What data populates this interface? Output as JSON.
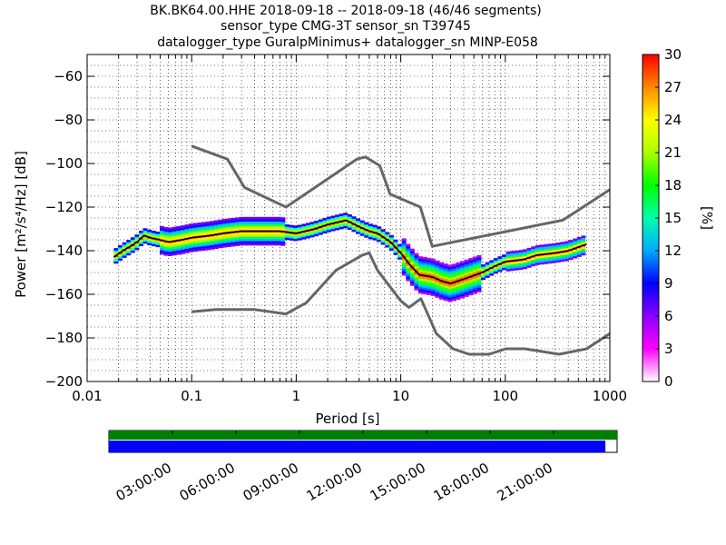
{
  "colors": {
    "nlnm_nhnm_curve": "#666666",
    "mode_line": "#000000",
    "coverage_top_bar": "#008000",
    "coverage_bottom_bar": "#0000ff",
    "grid": "#000000"
  },
  "chart_data": {
    "type": "heatmap",
    "title_lines": [
      "BK.BK64.00.HHE   2018-09-18 -- 2018-09-18  (46/46 segments)",
      "sensor_type CMG-3T sensor_sn T39745",
      "datalogger_type GuralpMinimus+ datalogger_sn MINP-E058"
    ],
    "xlabel": "Period [s]",
    "ylabel": "Power [m²/s⁴/Hz] [dB]",
    "x_scale": "log",
    "xlim": [
      0.01,
      1000
    ],
    "ylim": [
      -200,
      -50
    ],
    "x_ticks": [
      {
        "value": 0.01,
        "label": "0.01"
      },
      {
        "value": 0.1,
        "label": "0.1"
      },
      {
        "value": 1,
        "label": "1"
      },
      {
        "value": 10,
        "label": "10"
      },
      {
        "value": 100,
        "label": "100"
      },
      {
        "value": 1000,
        "label": "1000"
      }
    ],
    "y_ticks": [
      {
        "value": -60,
        "label": "−60"
      },
      {
        "value": -80,
        "label": "−80"
      },
      {
        "value": -100,
        "label": "−100"
      },
      {
        "value": -120,
        "label": "−120"
      },
      {
        "value": -140,
        "label": "−140"
      },
      {
        "value": -160,
        "label": "−160"
      },
      {
        "value": -180,
        "label": "−180"
      },
      {
        "value": -200,
        "label": "−200"
      }
    ],
    "grid": true,
    "colorbar": {
      "label": "[%]",
      "range": [
        0,
        30
      ],
      "ticks": [
        "0",
        "3",
        "6",
        "9",
        "12",
        "15",
        "18",
        "21",
        "24",
        "27",
        "30"
      ],
      "colormap": [
        "#ffffff",
        "#ff00ff",
        "#8a00ff",
        "#0000ff",
        "#00aaff",
        "#00ffaa",
        "#00ff00",
        "#aaff00",
        "#ffff00",
        "#ff8800",
        "#ff0000"
      ]
    },
    "series": [
      {
        "name": "",
        "style": "noise_model_high",
        "points": [
          [
            0.1,
            -92
          ],
          [
            0.22,
            -98
          ],
          [
            0.32,
            -111
          ],
          [
            0.8,
            -120
          ],
          [
            3.8,
            -98
          ],
          [
            4.6,
            -97
          ],
          [
            6.3,
            -101
          ],
          [
            7.9,
            -114
          ],
          [
            15.4,
            -120
          ],
          [
            20,
            -138
          ],
          [
            354.8,
            -126
          ],
          [
            1000,
            -112
          ]
        ]
      },
      {
        "name": "",
        "style": "noise_model_low",
        "points": [
          [
            0.1,
            -168
          ],
          [
            0.17,
            -167
          ],
          [
            0.4,
            -167
          ],
          [
            0.8,
            -169
          ],
          [
            1.24,
            -164
          ],
          [
            2.4,
            -149
          ],
          [
            4.3,
            -142
          ],
          [
            5,
            -141
          ],
          [
            6,
            -149
          ],
          [
            10,
            -163
          ],
          [
            12,
            -166
          ],
          [
            15.6,
            -162
          ],
          [
            21.9,
            -178
          ],
          [
            31.6,
            -185
          ],
          [
            45,
            -187.5
          ],
          [
            70,
            -187.5
          ],
          [
            101,
            -185
          ],
          [
            154,
            -185
          ],
          [
            328,
            -187.5
          ],
          [
            600,
            -185
          ],
          [
            1000,
            -178
          ]
        ]
      },
      {
        "name": "",
        "style": "mode",
        "points": [
          [
            0.018,
            -143
          ],
          [
            0.022,
            -140
          ],
          [
            0.026,
            -138
          ],
          [
            0.03,
            -136
          ],
          [
            0.035,
            -133
          ],
          [
            0.04,
            -134
          ],
          [
            0.05,
            -135
          ],
          [
            0.06,
            -136
          ],
          [
            0.08,
            -135
          ],
          [
            0.1,
            -134
          ],
          [
            0.15,
            -133
          ],
          [
            0.2,
            -132
          ],
          [
            0.3,
            -131
          ],
          [
            0.4,
            -131
          ],
          [
            0.5,
            -131
          ],
          [
            0.7,
            -131
          ],
          [
            1,
            -132
          ],
          [
            1.5,
            -130
          ],
          [
            2,
            -128
          ],
          [
            3,
            -126
          ],
          [
            4,
            -129
          ],
          [
            5,
            -131
          ],
          [
            6,
            -132
          ],
          [
            8,
            -136
          ],
          [
            10,
            -141
          ],
          [
            12,
            -146
          ],
          [
            15,
            -151
          ],
          [
            20,
            -152
          ],
          [
            25,
            -154
          ],
          [
            30,
            -155
          ],
          [
            40,
            -153
          ],
          [
            60,
            -150
          ],
          [
            80,
            -147
          ],
          [
            100,
            -145
          ],
          [
            150,
            -144
          ],
          [
            200,
            -142
          ],
          [
            300,
            -141
          ],
          [
            400,
            -140
          ],
          [
            600,
            -137
          ]
        ]
      }
    ],
    "time_axis_labels": [
      "03:00:00",
      "06:00:00",
      "09:00:00",
      "12:00:00",
      "15:00:00",
      "18:00:00",
      "21:00:00"
    ],
    "coverage": {
      "top_bar_fraction": 1.0,
      "bottom_bar_fraction": 0.977
    }
  }
}
